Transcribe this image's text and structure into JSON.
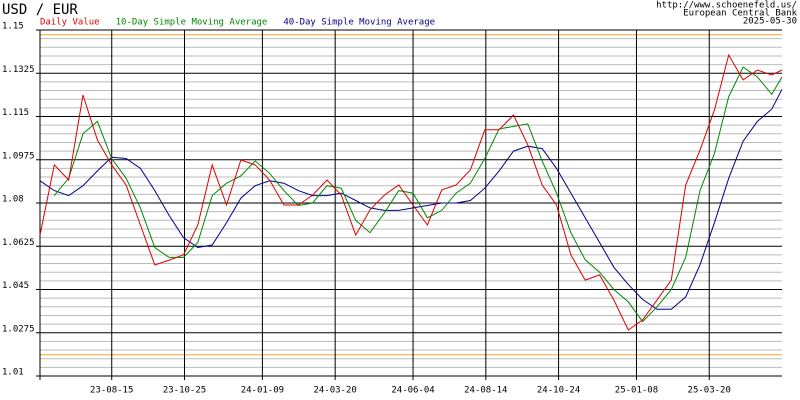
{
  "chart_data": {
    "type": "line",
    "title": "USD / EUR",
    "source": [
      "http://www.schoenefeld.us/",
      "European Central Bank",
      "2025-05-30"
    ],
    "x": [
      "23-06-06",
      "23-06-20",
      "23-07-04",
      "23-07-18",
      "23-08-01",
      "23-08-15",
      "23-08-29",
      "23-09-12",
      "23-09-26",
      "23-10-10",
      "23-10-24",
      "23-11-07",
      "23-11-21",
      "23-12-05",
      "23-12-19",
      "24-01-02",
      "24-01-16",
      "24-01-30",
      "24-02-13",
      "24-02-27",
      "24-03-12",
      "24-03-26",
      "24-04-09",
      "24-04-23",
      "24-05-07",
      "24-05-21",
      "24-06-04",
      "24-06-18",
      "24-07-02",
      "24-07-16",
      "24-07-30",
      "24-08-13",
      "24-08-27",
      "24-09-10",
      "24-09-24",
      "24-10-08",
      "24-10-22",
      "24-11-05",
      "24-11-19",
      "24-12-03",
      "24-12-17",
      "24-12-31",
      "25-01-14",
      "25-01-28",
      "25-02-11",
      "25-02-25",
      "25-03-11",
      "25-03-25",
      "25-04-08",
      "25-04-22",
      "25-05-06",
      "25-05-20",
      "25-05-30"
    ],
    "series": [
      {
        "name": "Daily Value",
        "color": "#dd0000",
        "values": [
          1.067,
          1.0954,
          1.0893,
          1.1237,
          1.1055,
          1.0954,
          1.0873,
          1.0711,
          1.0549,
          1.0569,
          1.059,
          1.0711,
          1.0954,
          1.0792,
          1.0974,
          1.0954,
          1.0893,
          1.0792,
          1.0792,
          1.0832,
          1.0893,
          1.0832,
          1.067,
          1.0772,
          1.0832,
          1.0873,
          1.0792,
          1.0711,
          1.0853,
          1.0873,
          1.0934,
          1.1096,
          1.1096,
          1.1156,
          1.1035,
          1.0873,
          1.0792,
          1.059,
          1.0488,
          1.0509,
          1.0407,
          1.0286,
          1.0327,
          1.0407,
          1.0488,
          1.0873,
          1.1014,
          1.1176,
          1.1399,
          1.1298,
          1.1338,
          1.1318,
          1.1338
        ]
      },
      {
        "name": "10-Day Simple Moving Average",
        "color": "#008800",
        "values": [
          null,
          1.083,
          1.09,
          1.108,
          1.113,
          1.098,
          1.09,
          1.078,
          1.062,
          1.058,
          1.058,
          1.064,
          1.083,
          1.088,
          1.091,
          1.097,
          1.092,
          1.085,
          1.079,
          1.08,
          1.087,
          1.086,
          1.073,
          1.068,
          1.076,
          1.085,
          1.084,
          1.074,
          1.077,
          1.084,
          1.088,
          1.098,
          1.11,
          1.111,
          1.112,
          1.097,
          1.084,
          1.068,
          1.057,
          1.052,
          1.045,
          1.04,
          1.032,
          1.038,
          1.045,
          1.058,
          1.085,
          1.1,
          1.123,
          1.135,
          1.131,
          1.124,
          1.131
        ]
      },
      {
        "name": "40-Day Simple Moving Average",
        "color": "#000088",
        "values": [
          1.089,
          1.085,
          1.083,
          1.087,
          1.093,
          1.0985,
          1.098,
          1.094,
          1.085,
          1.075,
          1.066,
          1.062,
          1.063,
          1.072,
          1.082,
          1.087,
          1.089,
          1.088,
          1.085,
          1.083,
          1.083,
          1.084,
          1.081,
          1.078,
          1.077,
          1.077,
          1.078,
          1.079,
          1.08,
          1.08,
          1.081,
          1.086,
          1.093,
          1.101,
          1.103,
          1.102,
          1.094,
          1.084,
          1.074,
          1.064,
          1.054,
          1.047,
          1.041,
          1.037,
          1.037,
          1.042,
          1.055,
          1.072,
          1.09,
          1.105,
          1.113,
          1.118,
          1.126
        ]
      }
    ],
    "xlim": [
      "23-06-06",
      "25-05-30"
    ],
    "xticks": [
      "23-08-15",
      "23-10-25",
      "24-01-09",
      "24-03-20",
      "24-06-04",
      "24-08-14",
      "24-10-24",
      "25-01-08",
      "25-03-20"
    ],
    "ylim": [
      1.01,
      1.15
    ],
    "yticks": [
      1.01,
      1.0275,
      1.045,
      1.0625,
      1.08,
      1.0975,
      1.115,
      1.1325,
      1.15
    ],
    "grid": true,
    "minor_divisions": 5,
    "hlines": [
      1.1481,
      1.0186
    ],
    "hline_color": "#f5a623"
  }
}
